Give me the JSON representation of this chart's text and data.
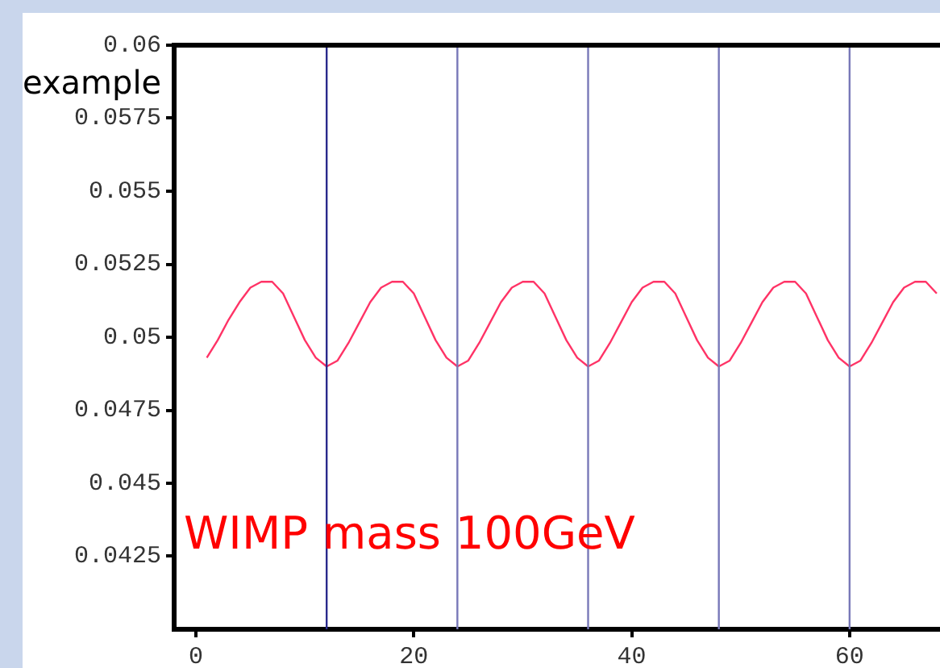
{
  "chart_data": {
    "type": "line",
    "x": [
      1,
      2,
      3,
      4,
      5,
      6,
      7,
      8,
      9,
      10,
      11,
      12,
      13,
      14,
      15,
      16,
      17,
      18,
      19,
      20,
      21,
      22,
      23,
      24,
      25,
      26,
      27,
      28,
      29,
      30,
      31,
      32,
      33,
      34,
      35,
      36,
      37,
      38,
      39,
      40,
      41,
      42,
      43,
      44,
      45,
      46,
      47,
      48,
      49,
      50,
      51,
      52,
      53,
      54,
      55,
      56,
      57,
      58,
      59,
      60,
      61,
      62,
      63,
      64,
      65,
      66,
      67,
      68
    ],
    "series": [
      {
        "color": "#ff3366",
        "values": [
          0.0493,
          0.0499,
          0.0506,
          0.0512,
          0.0517,
          0.0519,
          0.0519,
          0.0515,
          0.0507,
          0.0499,
          0.0493,
          0.049,
          0.0492,
          0.0498,
          0.0505,
          0.0512,
          0.0517,
          0.0519,
          0.0519,
          0.0515,
          0.0507,
          0.0499,
          0.0493,
          0.049,
          0.0492,
          0.0498,
          0.0505,
          0.0512,
          0.0517,
          0.0519,
          0.0519,
          0.0515,
          0.0507,
          0.0499,
          0.0493,
          0.049,
          0.0492,
          0.0498,
          0.0505,
          0.0512,
          0.0517,
          0.0519,
          0.0519,
          0.0515,
          0.0507,
          0.0499,
          0.0493,
          0.049,
          0.0492,
          0.0498,
          0.0505,
          0.0512,
          0.0517,
          0.0519,
          0.0519,
          0.0515,
          0.0507,
          0.0499,
          0.0493,
          0.049,
          0.0492,
          0.0498,
          0.0505,
          0.0512,
          0.0517,
          0.0519,
          0.0519,
          0.0515
        ]
      }
    ],
    "xlim": [
      -2,
      68.3
    ],
    "xticks": [
      0,
      20,
      40,
      60
    ],
    "ylim": [
      0.04,
      0.06
    ],
    "yticks": [
      0.0425,
      0.045,
      0.0475,
      0.05,
      0.0525,
      0.055,
      0.0575,
      0.06
    ],
    "ref_lines": [
      {
        "axis": "x",
        "value": 12,
        "color": "#2a2a8c"
      },
      {
        "axis": "x",
        "value": 24,
        "color": "#7878b8"
      },
      {
        "axis": "x",
        "value": 36,
        "color": "#7878b8"
      },
      {
        "axis": "x",
        "value": 48,
        "color": "#7878b8"
      },
      {
        "axis": "x",
        "value": 60,
        "color": "#7878b8"
      }
    ],
    "annotations": [
      "example",
      "WIMP mass 100GeV"
    ],
    "grid": false,
    "legend": false,
    "marker": "none",
    "line_style": "solid"
  }
}
